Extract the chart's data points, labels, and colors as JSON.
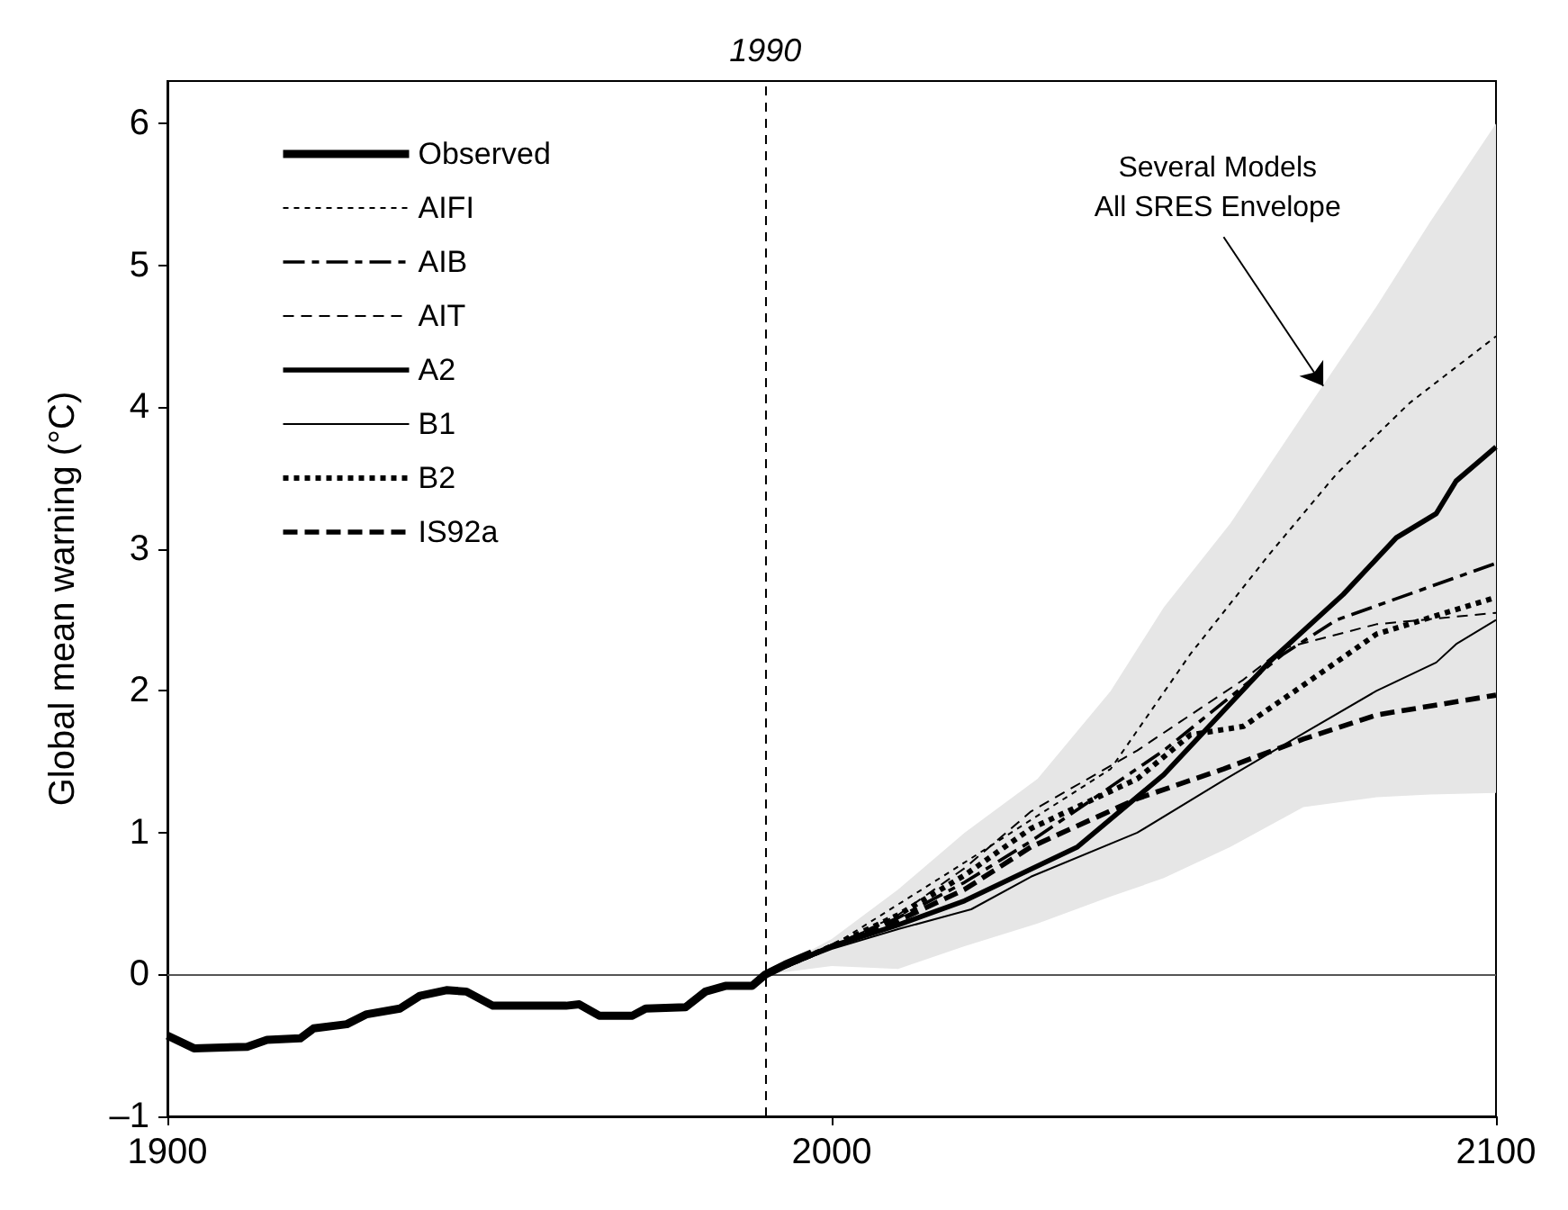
{
  "chart_data": {
    "type": "line",
    "ylabel": "Global mean warning (°C)",
    "xlim": [
      1900,
      2100
    ],
    "xticks": [
      1900,
      2000,
      2100
    ],
    "ylim": [
      -1,
      6.3
    ],
    "yticks": [
      {
        "value": -1,
        "label": "–1"
      },
      0,
      1,
      2,
      3,
      4,
      5,
      6
    ],
    "grid": false,
    "legend": "top left",
    "marker": "none",
    "ref_lines": [
      {
        "axis": "x",
        "value": 1990,
        "label": "1990",
        "line_style": "dashed",
        "color": "#000000"
      },
      {
        "axis": "y",
        "value": 0,
        "label": null,
        "line_style": "solid",
        "color": "#555555"
      }
    ],
    "annotations": [
      {
        "text": "Several Models\nAll SRES Envelope",
        "x": 2074,
        "y": 4.15
      }
    ],
    "series": [
      {
        "type": "area",
        "color": "#e6e6e6",
        "x": [
          1990,
          2000,
          2010,
          2020,
          2031,
          2042,
          2050,
          2060,
          2071,
          2082,
          2090,
          2100
        ],
        "values": [
          null,
          null,
          null,
          null,
          null,
          null,
          null,
          null,
          null,
          null,
          null,
          null
        ],
        "upper": [
          0,
          0.25,
          0.6,
          1.0,
          1.38,
          2.0,
          2.59,
          3.18,
          3.95,
          4.71,
          5.3,
          6.0
        ],
        "lower": [
          0,
          0.06,
          0.04,
          0.2,
          0.36,
          0.55,
          0.68,
          0.9,
          1.18,
          1.25,
          1.27,
          1.28
        ]
      },
      {
        "name": "Observed",
        "color": "#000000",
        "line_style": "solid",
        "x": [
          1900,
          1904,
          1912,
          1915,
          1920,
          1922,
          1927,
          1930,
          1935,
          1938,
          1942,
          1945,
          1949,
          1960,
          1962,
          1965,
          1970,
          1972,
          1978,
          1981,
          1984,
          1988,
          1990,
          1993,
          1997
        ],
        "values": [
          -0.43,
          -0.52,
          -0.51,
          -0.46,
          -0.45,
          -0.38,
          -0.35,
          -0.28,
          -0.24,
          -0.15,
          -0.11,
          -0.12,
          -0.22,
          -0.22,
          -0.21,
          -0.29,
          -0.29,
          -0.24,
          -0.23,
          -0.12,
          -0.08,
          -0.08,
          0,
          0.07,
          0.15
        ]
      },
      {
        "name": "AIFI",
        "color": "#000000",
        "line_style": "dotted",
        "x": [
          1990,
          2000,
          2018,
          2042,
          2054,
          2066,
          2076,
          2087,
          2100
        ],
        "values": [
          0,
          0.2,
          0.73,
          1.45,
          2.26,
          2.97,
          3.53,
          4.03,
          4.5
        ]
      },
      {
        "name": "AIB",
        "color": "#000000",
        "line_style": "dashed",
        "x": [
          1990,
          2000,
          2010,
          2020,
          2030,
          2050,
          2068,
          2076,
          2100
        ],
        "values": [
          0,
          0.2,
          0.4,
          0.65,
          0.94,
          1.58,
          2.26,
          2.5,
          2.9
        ]
      },
      {
        "name": "AIT",
        "color": "#000000",
        "line_style": "dashed",
        "x": [
          1990,
          2000,
          2010,
          2020,
          2030,
          2046,
          2062,
          2068,
          2082,
          2100
        ],
        "values": [
          0,
          0.2,
          0.42,
          0.75,
          1.15,
          1.58,
          2.08,
          2.3,
          2.47,
          2.55
        ]
      },
      {
        "name": "A2",
        "color": "#000000",
        "line_style": "solid",
        "x": [
          1990,
          2000,
          2010,
          2020,
          2037,
          2050,
          2066,
          2077,
          2085,
          2091,
          2094,
          2100
        ],
        "values": [
          0,
          0.2,
          0.35,
          0.52,
          0.9,
          1.41,
          2.21,
          2.68,
          3.08,
          3.25,
          3.48,
          3.72
        ]
      },
      {
        "name": "B1",
        "color": "#000000",
        "line_style": "solid",
        "x": [
          1990,
          2000,
          2010,
          2021,
          2030,
          2046,
          2059,
          2071,
          2082,
          2091,
          2094,
          2100
        ],
        "values": [
          0,
          0.18,
          0.32,
          0.46,
          0.69,
          1.0,
          1.37,
          1.7,
          2.0,
          2.2,
          2.33,
          2.5
        ]
      },
      {
        "name": "B2",
        "color": "#000000",
        "line_style": "dotted",
        "x": [
          1990,
          2000,
          2010,
          2020,
          2030,
          2046,
          2054,
          2062,
          2071,
          2082,
          2100
        ],
        "values": [
          0,
          0.2,
          0.42,
          0.7,
          1.03,
          1.38,
          1.69,
          1.75,
          2.04,
          2.4,
          2.66
        ]
      },
      {
        "name": "IS92a",
        "color": "#000000",
        "line_style": "dashed",
        "x": [
          1990,
          2000,
          2010,
          2020,
          2030,
          2046,
          2059,
          2071,
          2082,
          2100
        ],
        "values": [
          0,
          0.2,
          0.38,
          0.6,
          0.9,
          1.24,
          1.45,
          1.66,
          1.83,
          1.97
        ]
      }
    ]
  }
}
